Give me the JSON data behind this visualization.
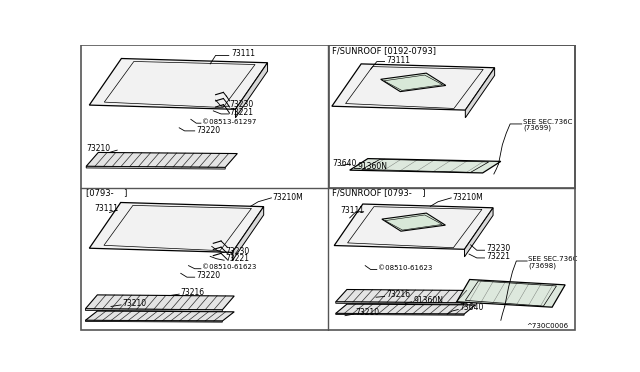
{
  "bg_color": "#ffffff",
  "line_color": "#000000",
  "text_color": "#000000",
  "gray_fill": "#e8e8e8",
  "hatch_fill": "#d0d0d0",
  "watermark": "^730C0006",
  "tl_parts": {
    "part_73111": "73111",
    "part_73230": "73230",
    "part_73221": "73221",
    "part_bolt": "©08513-61297",
    "part_73220": "73220",
    "part_73210": "73210"
  },
  "tr_label": "F/SUNROOF [0192-0793]",
  "tr_parts": {
    "part_73111": "73111",
    "part_91360N": "91360N",
    "part_73640": "73640",
    "part_seesec1": "SEE SEC.736C",
    "part_seesec2": "(73699)"
  },
  "bl_label": "[0793-    ]",
  "bl_parts": {
    "part_73111": "73111",
    "part_73210M": "73210M",
    "part_73230": "73230",
    "part_73221": "73221",
    "part_bolt": "©08510-61623",
    "part_73220": "73220",
    "part_73216": "73216",
    "part_73210": "73210"
  },
  "br_label": "F/SUNROOF [0793-    ]",
  "br_parts": {
    "part_73111": "73111",
    "part_73210M": "73210M",
    "part_73230": "73230",
    "part_73221": "73221",
    "part_bolt": "©08510-61623",
    "part_73216": "73216",
    "part_91360N": "91360N",
    "part_73640": "73640",
    "part_73210": "73210",
    "part_seesec1": "SEE SEC.736C",
    "part_seesec2": "(73698)"
  }
}
